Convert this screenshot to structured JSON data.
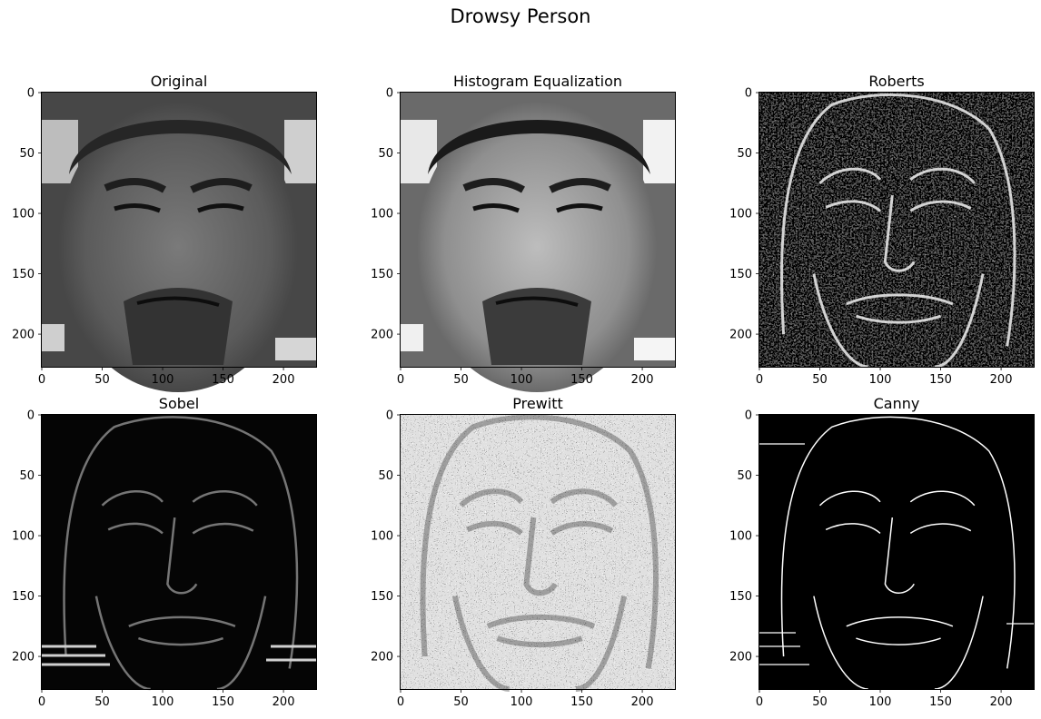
{
  "figure": {
    "suptitle": "Drowsy Person"
  },
  "chart_data": [
    {
      "type": "image",
      "title": "Original",
      "xticks": [
        0,
        50,
        100,
        150,
        200
      ],
      "yticks": [
        0,
        50,
        100,
        150,
        200
      ],
      "xlim": [
        0,
        227
      ],
      "ylim": [
        227,
        0
      ],
      "image_description": "grayscale face, drowsy man"
    },
    {
      "type": "image",
      "title": "Histogram Equalization",
      "xticks": [
        0,
        50,
        100,
        150,
        200
      ],
      "yticks": [
        0,
        50,
        100,
        150,
        200
      ],
      "xlim": [
        0,
        227
      ],
      "ylim": [
        227,
        0
      ],
      "image_description": "contrast-enhanced grayscale face"
    },
    {
      "type": "image",
      "title": "Roberts",
      "xticks": [
        0,
        50,
        100,
        150,
        200
      ],
      "yticks": [
        0,
        50,
        100,
        150,
        200
      ],
      "xlim": [
        0,
        227
      ],
      "ylim": [
        227,
        0
      ],
      "image_description": "Roberts edge map"
    },
    {
      "type": "image",
      "title": "Sobel",
      "xticks": [
        0,
        50,
        100,
        150,
        200
      ],
      "yticks": [
        0,
        50,
        100,
        150,
        200
      ],
      "xlim": [
        0,
        227
      ],
      "ylim": [
        227,
        0
      ],
      "image_description": "Sobel edge map"
    },
    {
      "type": "image",
      "title": "Prewitt",
      "xticks": [
        0,
        50,
        100,
        150,
        200
      ],
      "yticks": [
        0,
        50,
        100,
        150,
        200
      ],
      "xlim": [
        0,
        227
      ],
      "ylim": [
        227,
        0
      ],
      "image_description": "Prewitt edge map, noisy"
    },
    {
      "type": "image",
      "title": "Canny",
      "xticks": [
        0,
        50,
        100,
        150,
        200
      ],
      "yticks": [
        0,
        50,
        100,
        150,
        200
      ],
      "xlim": [
        0,
        227
      ],
      "ylim": [
        227,
        0
      ],
      "image_description": "Canny binary edge map"
    }
  ]
}
